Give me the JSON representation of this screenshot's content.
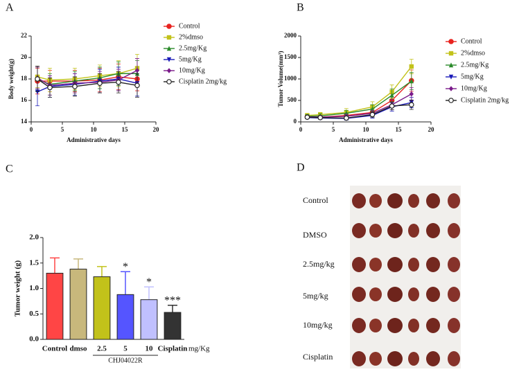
{
  "chart_data": [
    {
      "type": "line",
      "panel": "A",
      "xlabel": "Administrative days",
      "ylabel": "Body weight(g)",
      "x": [
        1,
        3,
        7,
        11,
        14,
        17
      ],
      "xlim": [
        0,
        20
      ],
      "xticks": [
        0,
        5,
        10,
        15,
        20
      ],
      "ylim": [
        14,
        22
      ],
      "yticks": [
        14,
        16,
        18,
        20,
        22
      ],
      "legend": "right",
      "series": [
        {
          "name": "Control",
          "color": "#e8231f",
          "marker": "circle",
          "values": [
            17.8,
            17.8,
            17.8,
            17.9,
            18.2,
            18.0
          ],
          "errors": [
            1.2,
            1.0,
            1.0,
            1.1,
            1.2,
            1.1
          ]
        },
        {
          "name": "2%dmso",
          "color": "#c2c21a",
          "marker": "square",
          "values": [
            18.2,
            17.9,
            18.0,
            18.3,
            18.5,
            19.0
          ],
          "errors": [
            1.0,
            1.1,
            1.0,
            1.0,
            1.2,
            1.3
          ]
        },
        {
          "name": "2.5mg/Kg",
          "color": "#2a8a2a",
          "marker": "triangle",
          "values": [
            18.0,
            17.5,
            17.8,
            18.1,
            18.5,
            18.5
          ],
          "errors": [
            1.1,
            1.0,
            0.9,
            1.0,
            1.1,
            1.2
          ]
        },
        {
          "name": "5mg/Kg",
          "color": "#1a1ab8",
          "marker": "triangle-down",
          "values": [
            16.8,
            17.3,
            17.5,
            17.8,
            18.0,
            17.6
          ],
          "errors": [
            1.3,
            1.0,
            1.0,
            1.1,
            1.1,
            1.2
          ]
        },
        {
          "name": "10mg/Kg",
          "color": "#7a1a8a",
          "marker": "diamond",
          "values": [
            18.1,
            17.4,
            17.6,
            17.7,
            17.9,
            18.8
          ],
          "errors": [
            1.0,
            0.9,
            0.9,
            1.0,
            1.0,
            1.1
          ]
        },
        {
          "name": "Cisplatin 2mg/kg",
          "color": "#222222",
          "marker": "open-circle",
          "values": [
            18.0,
            17.2,
            17.3,
            17.6,
            17.7,
            17.4
          ],
          "errors": [
            1.2,
            0.9,
            0.9,
            0.9,
            1.0,
            1.1
          ]
        }
      ]
    },
    {
      "type": "line",
      "panel": "B",
      "xlabel": "Administrative days",
      "ylabel": "Tumor Volume(mm³)",
      "x": [
        1,
        3,
        7,
        11,
        14,
        17
      ],
      "xlim": [
        0,
        20
      ],
      "xticks": [
        0,
        5,
        10,
        15,
        20
      ],
      "ylim": [
        0,
        2000
      ],
      "yticks": [
        0,
        500,
        1000,
        1500,
        2000
      ],
      "legend": "right",
      "series": [
        {
          "name": "Control",
          "color": "#e8231f",
          "marker": "circle",
          "values": [
            120,
            110,
            150,
            220,
            500,
            960
          ],
          "errors": [
            40,
            40,
            60,
            80,
            150,
            250
          ]
        },
        {
          "name": "2%dmso",
          "color": "#c2c21a",
          "marker": "square",
          "values": [
            150,
            170,
            220,
            350,
            700,
            1290
          ],
          "errors": [
            50,
            50,
            90,
            120,
            160,
            170
          ]
        },
        {
          "name": "2.5mg/Kg",
          "color": "#2a8a2a",
          "marker": "triangle",
          "values": [
            130,
            140,
            200,
            300,
            620,
            950
          ],
          "errors": [
            40,
            50,
            70,
            100,
            150,
            200
          ]
        },
        {
          "name": "5mg/Kg",
          "color": "#1a1ab8",
          "marker": "triangle-down",
          "values": [
            100,
            90,
            80,
            150,
            350,
            450
          ],
          "errors": [
            30,
            30,
            40,
            60,
            100,
            120
          ]
        },
        {
          "name": "10mg/Kg",
          "color": "#7a1a8a",
          "marker": "diamond",
          "values": [
            120,
            110,
            130,
            200,
            400,
            650
          ],
          "errors": [
            30,
            40,
            50,
            70,
            120,
            150
          ]
        },
        {
          "name": "Cisplatin 2mg/kg",
          "color": "#222222",
          "marker": "open-circle",
          "values": [
            110,
            100,
            90,
            170,
            370,
            400
          ],
          "errors": [
            30,
            30,
            40,
            60,
            90,
            110
          ]
        }
      ]
    },
    {
      "type": "bar",
      "panel": "C",
      "ylabel": "Tumor weight (g)",
      "unit_label": "mg/Kg",
      "group_label": "CHJ04022R",
      "categories": [
        "Control",
        "dmso",
        "2.5",
        "5",
        "10",
        "Cisplatin"
      ],
      "values": [
        1.3,
        1.38,
        1.23,
        0.88,
        0.78,
        0.53
      ],
      "errors": [
        0.3,
        0.2,
        0.2,
        0.45,
        0.25,
        0.14
      ],
      "colors": [
        "#ff4545",
        "#c8b87c",
        "#c2c21a",
        "#5555ff",
        "#c0c0ff",
        "#333333"
      ],
      "ylim": [
        0,
        2
      ],
      "yticks": [
        {
          "value": 0,
          "label": "0.0"
        },
        {
          "value": 0.5,
          "label": "0.5"
        },
        {
          "value": 1,
          "label": "1.0"
        },
        {
          "value": 1.5,
          "label": "1.5"
        },
        {
          "value": 2,
          "label": "2.0"
        }
      ],
      "significance": [
        {
          "category": "5",
          "text": "*"
        },
        {
          "category": "10",
          "text": "*"
        },
        {
          "category": "Cisplatin",
          "text": "***"
        }
      ]
    }
  ],
  "photo_panel": {
    "panel": "D",
    "rows": [
      "Control",
      "DMSO",
      "2.5mg/kg",
      "5mg/kg",
      "10mg/kg",
      "Cisplatin"
    ]
  }
}
